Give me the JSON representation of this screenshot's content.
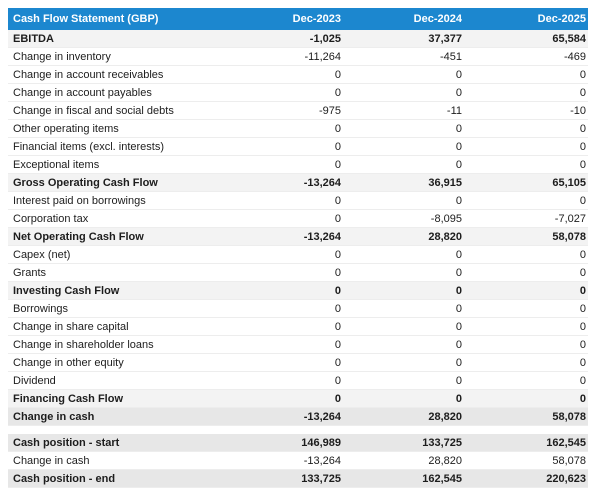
{
  "chart_data": {
    "type": "table",
    "title": "Cash Flow Statement (GBP)",
    "columns": [
      "Dec-2023",
      "Dec-2024",
      "Dec-2025"
    ],
    "rows": [
      {
        "label": "EBITDA",
        "values": [
          "-1,025",
          "37,377",
          "65,584"
        ],
        "style": "subtotal",
        "rule_top": false
      },
      {
        "label": "Change in inventory",
        "values": [
          "-11,264",
          "-451",
          "-469"
        ],
        "style": "normal",
        "rule_top": false
      },
      {
        "label": "Change in account receivables",
        "values": [
          "0",
          "0",
          "0"
        ],
        "style": "normal",
        "rule_top": false
      },
      {
        "label": "Change in account payables",
        "values": [
          "0",
          "0",
          "0"
        ],
        "style": "normal",
        "rule_top": false
      },
      {
        "label": "Change in fiscal and social debts",
        "values": [
          "-975",
          "-11",
          "-10"
        ],
        "style": "normal",
        "rule_top": false
      },
      {
        "label": "Other operating items",
        "values": [
          "0",
          "0",
          "0"
        ],
        "style": "normal",
        "rule_top": false
      },
      {
        "label": "Financial items (excl. interests)",
        "values": [
          "0",
          "0",
          "0"
        ],
        "style": "normal",
        "rule_top": false
      },
      {
        "label": "Exceptional items",
        "values": [
          "0",
          "0",
          "0"
        ],
        "style": "normal",
        "rule_top": false
      },
      {
        "label": "Gross Operating Cash Flow",
        "values": [
          "-13,264",
          "36,915",
          "65,105"
        ],
        "style": "subtotal",
        "rule_top": true
      },
      {
        "label": "Interest paid on borrowings",
        "values": [
          "0",
          "0",
          "0"
        ],
        "style": "normal",
        "rule_top": false
      },
      {
        "label": "Corporation tax",
        "values": [
          "0",
          "-8,095",
          "-7,027"
        ],
        "style": "normal",
        "rule_top": false
      },
      {
        "label": "Net Operating Cash Flow",
        "values": [
          "-13,264",
          "28,820",
          "58,078"
        ],
        "style": "subtotal",
        "rule_top": true
      },
      {
        "label": "Capex (net)",
        "values": [
          "0",
          "0",
          "0"
        ],
        "style": "normal",
        "rule_top": false
      },
      {
        "label": "Grants",
        "values": [
          "0",
          "0",
          "0"
        ],
        "style": "normal",
        "rule_top": false
      },
      {
        "label": "Investing Cash Flow",
        "values": [
          "0",
          "0",
          "0"
        ],
        "style": "subtotal",
        "rule_top": true
      },
      {
        "label": "Borrowings",
        "values": [
          "0",
          "0",
          "0"
        ],
        "style": "normal",
        "rule_top": false
      },
      {
        "label": "Change in share capital",
        "values": [
          "0",
          "0",
          "0"
        ],
        "style": "normal",
        "rule_top": false
      },
      {
        "label": "Change in shareholder loans",
        "values": [
          "0",
          "0",
          "0"
        ],
        "style": "normal",
        "rule_top": false
      },
      {
        "label": "Change in other equity",
        "values": [
          "0",
          "0",
          "0"
        ],
        "style": "normal",
        "rule_top": false
      },
      {
        "label": "Dividend",
        "values": [
          "0",
          "0",
          "0"
        ],
        "style": "normal",
        "rule_top": false
      },
      {
        "label": "Financing Cash Flow",
        "values": [
          "0",
          "0",
          "0"
        ],
        "style": "subtotal",
        "rule_top": true
      },
      {
        "label": "Change in cash",
        "values": [
          "-13,264",
          "28,820",
          "58,078"
        ],
        "style": "highlight",
        "rule_top": false
      },
      {
        "style": "separator"
      },
      {
        "label": "Cash position - start",
        "values": [
          "146,989",
          "133,725",
          "162,545"
        ],
        "style": "highlight",
        "rule_top": false
      },
      {
        "label": "Change in cash",
        "values": [
          "-13,264",
          "28,820",
          "58,078"
        ],
        "style": "normal",
        "rule_top": false
      },
      {
        "label": "Cash position - end",
        "values": [
          "133,725",
          "162,545",
          "220,623"
        ],
        "style": "highlight",
        "rule_top": true
      }
    ],
    "layout": {
      "legend": "none",
      "grid": "horizontal-row-separators",
      "value_alignment": "right"
    }
  },
  "colors": {
    "header_bg": "#1c87cf",
    "header_text": "#ffffff",
    "subtotal_bg": "#f3f3f3",
    "highlight_bg": "#e7e7e7",
    "row_border": "#ededed",
    "rule_border": "#a8a8a8",
    "text": "#1d1d1d"
  }
}
